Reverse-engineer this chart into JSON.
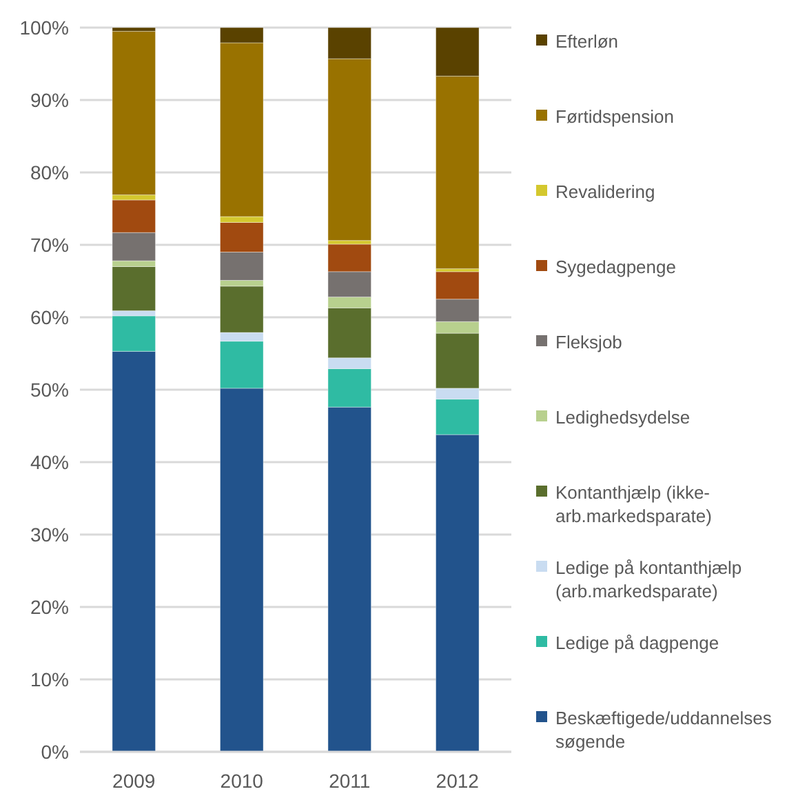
{
  "chart_data": {
    "type": "bar",
    "stacked": true,
    "categories": [
      "2009",
      "2010",
      "2011",
      "2012"
    ],
    "ylim": [
      0,
      100
    ],
    "yticks": [
      {
        "value": 0,
        "label": "0%"
      },
      {
        "value": 10,
        "label": "10%"
      },
      {
        "value": 20,
        "label": "20%"
      },
      {
        "value": 30,
        "label": "30%"
      },
      {
        "value": 40,
        "label": "40%"
      },
      {
        "value": 50,
        "label": "50%"
      },
      {
        "value": 60,
        "label": "60%"
      },
      {
        "value": 70,
        "label": "70%"
      },
      {
        "value": 80,
        "label": "80%"
      },
      {
        "value": 90,
        "label": "90%"
      },
      {
        "value": 100,
        "label": "100%"
      }
    ],
    "grid": "y",
    "legend": "right",
    "series": [
      {
        "name": "Beskæftigede/uddannelsessøgende",
        "color": "#22538c",
        "values": [
          55.3,
          50.2,
          47.6,
          43.8
        ]
      },
      {
        "name": "Ledige på dagpenge",
        "color": "#2fbba3",
        "values": [
          4.9,
          6.5,
          5.3,
          4.9
        ]
      },
      {
        "name": "Ledige på kontanthjælp (arb.markedsparate)",
        "color": "#c9dcf1",
        "values": [
          0.7,
          1.2,
          1.5,
          1.5
        ]
      },
      {
        "name": "Kontanthjælp (ikke-arb.markedsparate)",
        "color": "#5a6e2d",
        "values": [
          6.1,
          6.4,
          6.9,
          7.6
        ]
      },
      {
        "name": "Ledighedsydelse",
        "color": "#b8d08e",
        "values": [
          0.8,
          0.8,
          1.5,
          1.6
        ]
      },
      {
        "name": "Fleksjob",
        "color": "#76716f",
        "values": [
          3.9,
          3.9,
          3.5,
          3.1
        ]
      },
      {
        "name": "Sygedagpenge",
        "color": "#a14a10",
        "values": [
          4.5,
          4.1,
          3.8,
          3.8
        ]
      },
      {
        "name": "Revalidering",
        "color": "#d4c82e",
        "values": [
          0.7,
          0.8,
          0.5,
          0.4
        ]
      },
      {
        "name": "Førtidspension",
        "color": "#997200",
        "values": [
          22.6,
          24.0,
          25.1,
          26.6
        ]
      },
      {
        "name": "Efterløn",
        "color": "#5a4200",
        "values": [
          0.5,
          2.1,
          4.3,
          6.7
        ]
      }
    ]
  }
}
